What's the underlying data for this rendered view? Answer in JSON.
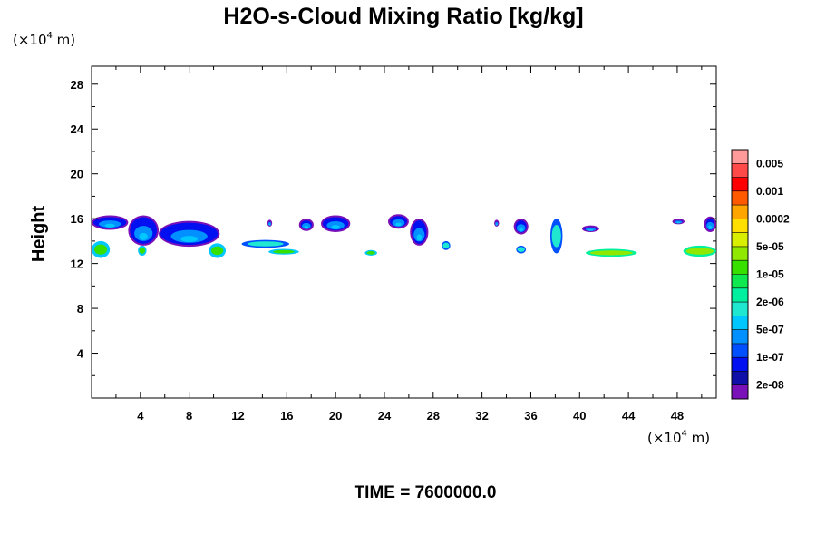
{
  "chart_data": {
    "type": "heatmap",
    "title": "H2O-s-Cloud Mixing Ratio [kg/kg]",
    "ylabel": "Height",
    "xlabel": "",
    "x_unit": {
      "prefix": "(×10",
      "exp": "4",
      "suffix": " m)"
    },
    "y_unit": {
      "prefix": "(×10",
      "exp": "4",
      "suffix": " m)"
    },
    "xlim": [
      0,
      51.2
    ],
    "ylim": [
      0,
      29.6
    ],
    "x_ticks": [
      "4",
      "8",
      "12",
      "16",
      "20",
      "24",
      "28",
      "32",
      "36",
      "40",
      "44",
      "48"
    ],
    "y_ticks": [
      "4",
      "8",
      "12",
      "16",
      "20",
      "24",
      "28"
    ],
    "time_label": "TIME = 7600000.0",
    "colorbar": {
      "labels": [
        "0.005",
        "0.001",
        "0.0002",
        "5e-05",
        "1e-05",
        "2e-06",
        "5e-07",
        "1e-07",
        "2e-08"
      ],
      "colors": [
        "#ff9a9a",
        "#ff4a4a",
        "#ff0000",
        "#ff5a00",
        "#ffa500",
        "#ffe000",
        "#d8f000",
        "#90e800",
        "#38e000",
        "#10e850",
        "#00f0a0",
        "#20e8d0",
        "#00c8ff",
        "#0090ff",
        "#0050ff",
        "#0010f0",
        "#1010a8",
        "#7a10b8"
      ]
    },
    "cloud_patches": [
      {
        "x": [
          0.0,
          3.0
        ],
        "y": [
          15.0,
          16.3
        ],
        "level": "2e-08"
      },
      {
        "x": [
          0.0,
          1.5
        ],
        "y": [
          12.5,
          14.0
        ],
        "level": "2e-06"
      },
      {
        "x": [
          3.0,
          5.5
        ],
        "y": [
          13.6,
          16.3
        ],
        "level": "2e-08"
      },
      {
        "x": [
          5.5,
          10.5
        ],
        "y": [
          13.5,
          15.8
        ],
        "level": "2e-08"
      },
      {
        "x": [
          3.8,
          4.5
        ],
        "y": [
          12.7,
          13.6
        ],
        "level": "2e-06"
      },
      {
        "x": [
          9.6,
          11.0
        ],
        "y": [
          12.5,
          13.8
        ],
        "level": "2e-06"
      },
      {
        "x": [
          12.3,
          16.2
        ],
        "y": [
          13.4,
          14.1
        ],
        "level": "5e-07"
      },
      {
        "x": [
          14.5,
          17.0
        ],
        "y": [
          12.8,
          13.3
        ],
        "level": "2e-06"
      },
      {
        "x": [
          14.4,
          14.8
        ],
        "y": [
          15.3,
          15.9
        ],
        "level": "2e-08"
      },
      {
        "x": [
          17.0,
          18.2
        ],
        "y": [
          14.9,
          16.0
        ],
        "level": "2e-08"
      },
      {
        "x": [
          18.8,
          21.2
        ],
        "y": [
          14.8,
          16.3
        ],
        "level": "2e-08"
      },
      {
        "x": [
          22.4,
          23.4
        ],
        "y": [
          12.7,
          13.2
        ],
        "level": "2e-06"
      },
      {
        "x": [
          24.3,
          26.0
        ],
        "y": [
          15.1,
          16.4
        ],
        "level": "2e-08"
      },
      {
        "x": [
          26.1,
          27.6
        ],
        "y": [
          13.6,
          16.0
        ],
        "level": "2e-08"
      },
      {
        "x": [
          28.7,
          29.4
        ],
        "y": [
          13.2,
          14.0
        ],
        "level": "5e-07"
      },
      {
        "x": [
          33.0,
          33.4
        ],
        "y": [
          15.3,
          15.9
        ],
        "level": "2e-08"
      },
      {
        "x": [
          34.6,
          35.8
        ],
        "y": [
          14.6,
          16.0
        ],
        "level": "2e-08"
      },
      {
        "x": [
          34.8,
          35.6
        ],
        "y": [
          12.9,
          13.6
        ],
        "level": "5e-07"
      },
      {
        "x": [
          37.6,
          38.6
        ],
        "y": [
          12.9,
          16.0
        ],
        "level": "5e-07"
      },
      {
        "x": [
          40.2,
          41.6
        ],
        "y": [
          14.8,
          15.4
        ],
        "level": "2e-08"
      },
      {
        "x": [
          40.5,
          44.7
        ],
        "y": [
          12.6,
          13.3
        ],
        "level": "1e-05"
      },
      {
        "x": [
          47.6,
          48.6
        ],
        "y": [
          15.5,
          16.0
        ],
        "level": "2e-08"
      },
      {
        "x": [
          48.5,
          51.2
        ],
        "y": [
          12.6,
          13.6
        ],
        "level": "1e-05"
      },
      {
        "x": [
          50.2,
          51.2
        ],
        "y": [
          14.8,
          16.2
        ],
        "level": "2e-08"
      }
    ]
  }
}
